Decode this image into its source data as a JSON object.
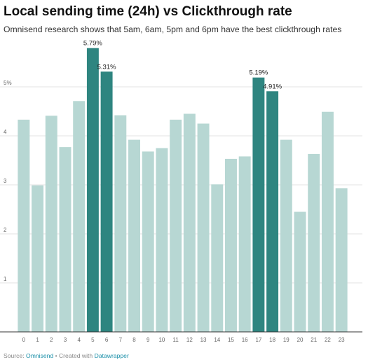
{
  "title": "Local sending time (24h) vs Clickthrough rate",
  "subtitle": "Omnisend research shows that 5am, 6am, 5pm and 6pm have the best clickthrough rates",
  "footer": {
    "source_prefix": "Source: ",
    "source_link": "Omnisend",
    "separator": " • Created with ",
    "tool_link": "Datawrapper"
  },
  "colors": {
    "default_bar": "#b7d7d3",
    "highlight_bar": "#2e8580",
    "grid": "#e3e3e3",
    "axis": "#333333"
  },
  "chart_data": {
    "type": "bar",
    "title": "Local sending time (24h) vs Clickthrough rate",
    "xlabel": "",
    "ylabel": "",
    "categories": [
      "0",
      "1",
      "2",
      "3",
      "4",
      "5",
      "6",
      "7",
      "8",
      "9",
      "10",
      "11",
      "12",
      "13",
      "14",
      "15",
      "16",
      "17",
      "18",
      "19",
      "20",
      "21",
      "22",
      "23"
    ],
    "values": [
      4.33,
      2.99,
      4.41,
      3.77,
      4.71,
      5.79,
      5.31,
      4.42,
      3.92,
      3.68,
      3.75,
      4.33,
      4.45,
      4.25,
      3.01,
      3.53,
      3.58,
      5.19,
      4.91,
      3.92,
      2.45,
      3.63,
      4.49,
      2.93
    ],
    "highlighted": [
      5,
      6,
      17,
      18
    ],
    "data_labels": {
      "5": "5.79%",
      "6": "5.31%",
      "17": "5.19%",
      "18": "4.91%"
    },
    "yticks": [
      {
        "value": 1,
        "label": "1"
      },
      {
        "value": 2,
        "label": "2"
      },
      {
        "value": 3,
        "label": "3"
      },
      {
        "value": 4,
        "label": "4"
      },
      {
        "value": 5,
        "label": "5%"
      }
    ],
    "ylim": [
      0,
      6.5
    ],
    "grid": true,
    "legend": "none"
  }
}
